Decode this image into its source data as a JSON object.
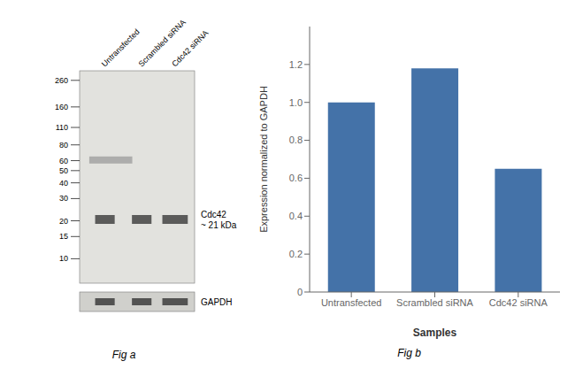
{
  "chart_data": [
    {
      "type": "blot",
      "categories": [
        "Untransfected",
        "Scrambled siRNA",
        "Cdc42 siRNA"
      ],
      "yticks": [
        260,
        160,
        110,
        80,
        60,
        50,
        40,
        30,
        20,
        15,
        10
      ],
      "annotations": [
        "Cdc42\n~ 21 kDa",
        "GAPDH"
      ],
      "subtitle": "Fig a",
      "colors": [
        "#e2e2de",
        "#d0d0cc",
        "#484848",
        "#909090"
      ]
    },
    {
      "type": "bar",
      "categories": [
        "Untransfected",
        "Scrambled siRNA",
        "Cdc42 siRNA"
      ],
      "values": [
        1.0,
        1.18,
        0.65
      ],
      "color": "#4472a8",
      "xlabel": "Samples",
      "ylabel": "Expression normalized to GAPDH",
      "ylim": [
        0,
        1.4
      ],
      "yticks": [
        0,
        0.2,
        0.4,
        0.6,
        0.8,
        {
          "value": 1.0,
          "label": "1.0"
        },
        1.2
      ],
      "grid": false,
      "subtitle": "Fig b"
    }
  ]
}
